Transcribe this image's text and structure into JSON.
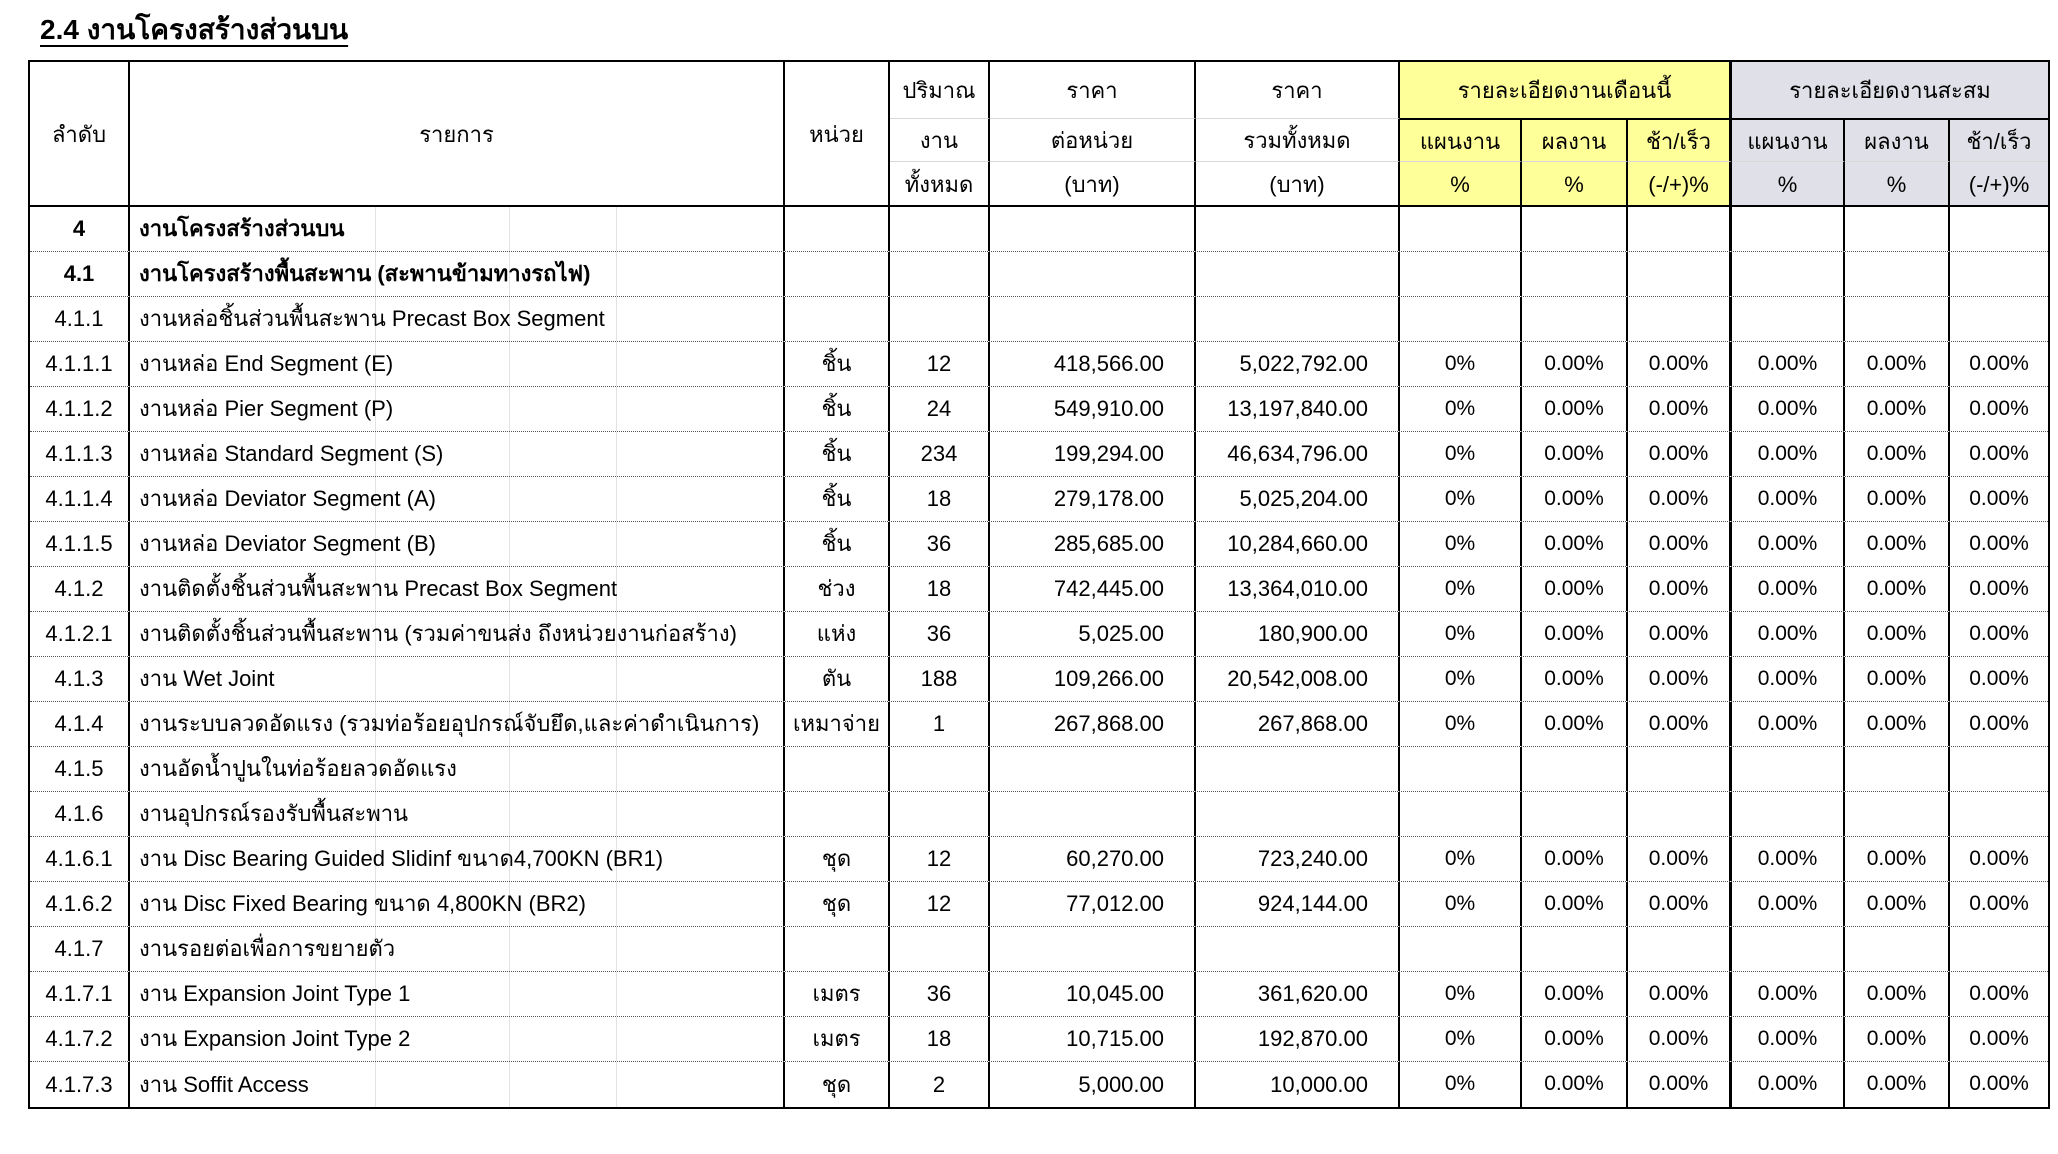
{
  "title": "2.4 งานโครงสร้างส่วนบน",
  "colors": {
    "month_header_bg": "#FFFF99",
    "cumulative_header_bg": "#E0E0E8",
    "border": "#000000",
    "row_divider": "#555555"
  },
  "table": {
    "headers": {
      "no": "ลำดับ",
      "item": "รายการ",
      "unit": "หน่วย",
      "qty_lines": [
        "ปริมาณ",
        "งาน",
        "ทั้งหมด"
      ],
      "unit_price_lines": [
        "ราคา",
        "ต่อหน่วย",
        "(บาท)"
      ],
      "total_price_lines": [
        "ราคา",
        "รวมทั้งหมด",
        "(บาท)"
      ],
      "month_group": "รายละเอียดงานเดือนนี้",
      "cumulative_group": "รายละเอียดงานสะสม",
      "plan": "แผนงาน",
      "actual": "ผลงาน",
      "late_early": "ช้า/เร็ว",
      "percent": "%",
      "late_early_percent": "(-/+)%"
    },
    "rows": [
      {
        "no": "4",
        "item": "งานโครงสร้างส่วนบน",
        "unit": "",
        "qty": "",
        "price": "",
        "total": "",
        "mp": "",
        "ma": "",
        "md": "",
        "cp": "",
        "ca": "",
        "cd": "",
        "bold": true
      },
      {
        "no": "4.1",
        "item": "งานโครงสร้างพื้นสะพาน (สะพานข้ามทางรถไฟ)",
        "unit": "",
        "qty": "",
        "price": "",
        "total": "",
        "mp": "",
        "ma": "",
        "md": "",
        "cp": "",
        "ca": "",
        "cd": "",
        "bold": true
      },
      {
        "no": "4.1.1",
        "item": "งานหล่อชิ้นส่วนพื้นสะพาน Precast Box Segment",
        "unit": "",
        "qty": "",
        "price": "",
        "total": "",
        "mp": "",
        "ma": "",
        "md": "",
        "cp": "",
        "ca": "",
        "cd": "",
        "bold": false
      },
      {
        "no": "4.1.1.1",
        "item": "งานหล่อ End Segment (E)",
        "unit": "ชิ้น",
        "qty": "12",
        "price": "418,566.00",
        "total": "5,022,792.00",
        "mp": "0%",
        "ma": "0.00%",
        "md": "0.00%",
        "cp": "0.00%",
        "ca": "0.00%",
        "cd": "0.00%",
        "bold": false
      },
      {
        "no": "4.1.1.2",
        "item": "งานหล่อ Pier Segment (P)",
        "unit": "ชิ้น",
        "qty": "24",
        "price": "549,910.00",
        "total": "13,197,840.00",
        "mp": "0%",
        "ma": "0.00%",
        "md": "0.00%",
        "cp": "0.00%",
        "ca": "0.00%",
        "cd": "0.00%",
        "bold": false
      },
      {
        "no": "4.1.1.3",
        "item": "งานหล่อ Standard Segment (S)",
        "unit": "ชิ้น",
        "qty": "234",
        "price": "199,294.00",
        "total": "46,634,796.00",
        "mp": "0%",
        "ma": "0.00%",
        "md": "0.00%",
        "cp": "0.00%",
        "ca": "0.00%",
        "cd": "0.00%",
        "bold": false
      },
      {
        "no": "4.1.1.4",
        "item": "งานหล่อ Deviator Segment (A)",
        "unit": "ชิ้น",
        "qty": "18",
        "price": "279,178.00",
        "total": "5,025,204.00",
        "mp": "0%",
        "ma": "0.00%",
        "md": "0.00%",
        "cp": "0.00%",
        "ca": "0.00%",
        "cd": "0.00%",
        "bold": false
      },
      {
        "no": "4.1.1.5",
        "item": "งานหล่อ Deviator Segment (B)",
        "unit": "ชิ้น",
        "qty": "36",
        "price": "285,685.00",
        "total": "10,284,660.00",
        "mp": "0%",
        "ma": "0.00%",
        "md": "0.00%",
        "cp": "0.00%",
        "ca": "0.00%",
        "cd": "0.00%",
        "bold": false
      },
      {
        "no": "4.1.2",
        "item": "งานติดตั้งชิ้นส่วนพื้นสะพาน Precast Box Segment",
        "unit": "ช่วง",
        "qty": "18",
        "price": "742,445.00",
        "total": "13,364,010.00",
        "mp": "0%",
        "ma": "0.00%",
        "md": "0.00%",
        "cp": "0.00%",
        "ca": "0.00%",
        "cd": "0.00%",
        "bold": false
      },
      {
        "no": "4.1.2.1",
        "item": "งานติดตั้งชิ้นส่วนพื้นสะพาน (รวมค่าขนส่ง ถึงหน่วยงานก่อสร้าง)",
        "unit": "แห่ง",
        "qty": "36",
        "price": "5,025.00",
        "total": "180,900.00",
        "mp": "0%",
        "ma": "0.00%",
        "md": "0.00%",
        "cp": "0.00%",
        "ca": "0.00%",
        "cd": "0.00%",
        "bold": false
      },
      {
        "no": "4.1.3",
        "item": "งาน Wet Joint",
        "unit": "ตัน",
        "qty": "188",
        "price": "109,266.00",
        "total": "20,542,008.00",
        "mp": "0%",
        "ma": "0.00%",
        "md": "0.00%",
        "cp": "0.00%",
        "ca": "0.00%",
        "cd": "0.00%",
        "bold": false
      },
      {
        "no": "4.1.4",
        "item": "งานระบบลวดอัดแรง (รวมท่อร้อยอุปกรณ์จับยึด,และค่าดำเนินการ)",
        "unit": "เหมาจ่าย",
        "qty": "1",
        "price": "267,868.00",
        "total": "267,868.00",
        "mp": "0%",
        "ma": "0.00%",
        "md": "0.00%",
        "cp": "0.00%",
        "ca": "0.00%",
        "cd": "0.00%",
        "bold": false
      },
      {
        "no": "4.1.5",
        "item": "งานอัดน้ำปูนในท่อร้อยลวดอัดแรง",
        "unit": "",
        "qty": "",
        "price": "",
        "total": "",
        "mp": "",
        "ma": "",
        "md": "",
        "cp": "",
        "ca": "",
        "cd": "",
        "bold": false
      },
      {
        "no": "4.1.6",
        "item": "งานอุปกรณ์รองรับพื้นสะพาน",
        "unit": "",
        "qty": "",
        "price": "",
        "total": "",
        "mp": "",
        "ma": "",
        "md": "",
        "cp": "",
        "ca": "",
        "cd": "",
        "bold": false
      },
      {
        "no": "4.1.6.1",
        "item": "งาน Disc Bearing Guided Slidinf ขนาด4,700KN (BR1)",
        "unit": "ชุด",
        "qty": "12",
        "price": "60,270.00",
        "total": "723,240.00",
        "mp": "0%",
        "ma": "0.00%",
        "md": "0.00%",
        "cp": "0.00%",
        "ca": "0.00%",
        "cd": "0.00%",
        "bold": false
      },
      {
        "no": "4.1.6.2",
        "item": "งาน Disc Fixed Bearing ขนาด 4,800KN (BR2)",
        "unit": "ชุด",
        "qty": "12",
        "price": "77,012.00",
        "total": "924,144.00",
        "mp": "0%",
        "ma": "0.00%",
        "md": "0.00%",
        "cp": "0.00%",
        "ca": "0.00%",
        "cd": "0.00%",
        "bold": false
      },
      {
        "no": "4.1.7",
        "item": "งานรอยต่อเพื่อการขยายตัว",
        "unit": "",
        "qty": "",
        "price": "",
        "total": "",
        "mp": "",
        "ma": "",
        "md": "",
        "cp": "",
        "ca": "",
        "cd": "",
        "bold": false
      },
      {
        "no": "4.1.7.1",
        "item": "งาน Expansion Joint Type 1",
        "unit": "เมตร",
        "qty": "36",
        "price": "10,045.00",
        "total": "361,620.00",
        "mp": "0%",
        "ma": "0.00%",
        "md": "0.00%",
        "cp": "0.00%",
        "ca": "0.00%",
        "cd": "0.00%",
        "bold": false
      },
      {
        "no": "4.1.7.2",
        "item": "งาน Expansion Joint Type 2",
        "unit": "เมตร",
        "qty": "18",
        "price": "10,715.00",
        "total": "192,870.00",
        "mp": "0%",
        "ma": "0.00%",
        "md": "0.00%",
        "cp": "0.00%",
        "ca": "0.00%",
        "cd": "0.00%",
        "bold": false
      },
      {
        "no": "4.1.7.3",
        "item": "งาน Soffit Access",
        "unit": "ชุด",
        "qty": "2",
        "price": "5,000.00",
        "total": "10,000.00",
        "mp": "0%",
        "ma": "0.00%",
        "md": "0.00%",
        "cp": "0.00%",
        "ca": "0.00%",
        "cd": "0.00%",
        "bold": false
      }
    ]
  }
}
